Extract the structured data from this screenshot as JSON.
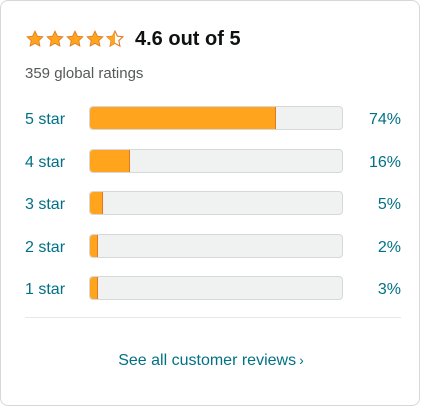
{
  "summary": {
    "rating_value": 4.6,
    "rating_text": "4.6 out of 5",
    "total_ratings": "359 global ratings",
    "star_color": "#ffa41c"
  },
  "histogram": [
    {
      "label": "5 star",
      "percent_text": "74%",
      "percent": 74
    },
    {
      "label": "4 star",
      "percent_text": "16%",
      "percent": 16
    },
    {
      "label": "3 star",
      "percent_text": "5%",
      "percent": 5
    },
    {
      "label": "2 star",
      "percent_text": "2%",
      "percent": 2
    },
    {
      "label": "1 star",
      "percent_text": "3%",
      "percent": 3
    }
  ],
  "footer": {
    "see_all_label": "See all customer reviews",
    "chevron_icon": "chevron-right-icon"
  },
  "colors": {
    "link": "#007185",
    "bar_fill": "#ffa41c",
    "bar_track": "#f0f2f2",
    "text": "#0f1111",
    "muted": "#565959"
  }
}
